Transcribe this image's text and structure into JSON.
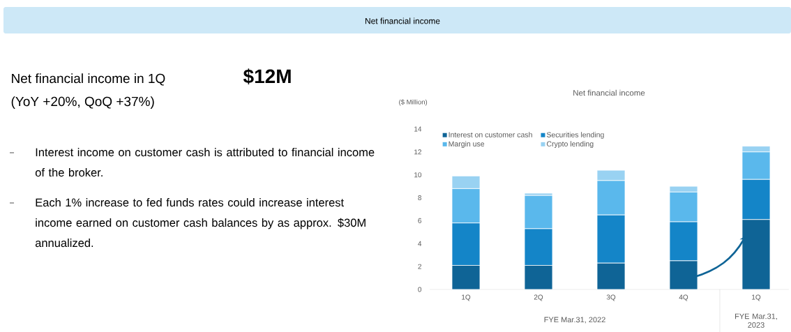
{
  "chart_data": {
    "type": "bar",
    "stacked": true,
    "title": "Net financial income",
    "ylabel": "($ Million)",
    "categories": [
      "1Q",
      "2Q",
      "3Q",
      "4Q",
      "1Q"
    ],
    "series": [
      {
        "name": "Interest on customer cash",
        "color": "#0f6496",
        "values": [
          2.1,
          2.1,
          2.3,
          2.5,
          6.1
        ]
      },
      {
        "name": "Securities lending",
        "color": "#1485c8",
        "values": [
          3.7,
          3.2,
          4.2,
          3.4,
          3.5
        ]
      },
      {
        "name": "Margin use",
        "color": "#5ab8ec",
        "values": [
          3.0,
          2.9,
          3.0,
          2.6,
          2.4
        ]
      },
      {
        "name": "Crypto lending",
        "color": "#99d2f2",
        "values": [
          1.1,
          0.2,
          0.9,
          0.5,
          0.5
        ]
      }
    ],
    "ylim": [
      0,
      14
    ],
    "yticks": [
      0,
      2,
      4,
      6,
      8,
      10,
      12,
      14
    ],
    "legend": "top left",
    "annotations": [
      "Net financial income",
      "Net financial income in 1Q",
      "$12M",
      "(YoY +20%, QoQ +37%)",
      "Interest income on customer cash is attributed to financial income of the broker.",
      "Each 1% increase to fed funds rates could increase interest income earned on customer cash balances by as approx. $30M annualized.",
      "FYE Mar.31, 2022",
      "FYE Mar.31, 2023"
    ]
  }
}
